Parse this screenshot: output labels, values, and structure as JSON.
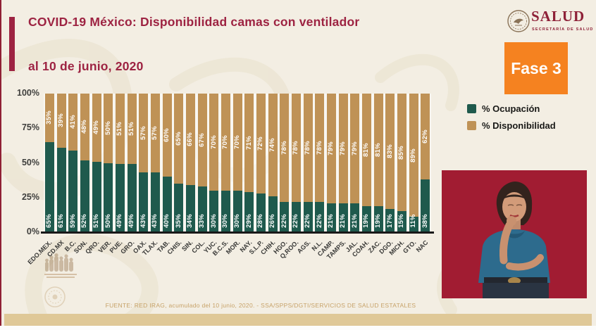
{
  "header": {
    "title_line1": "COVID-19 México: Disponibilidad camas con ventilador",
    "title_line2": "al 10 de junio, 2020",
    "phase_badge": "Fase 3",
    "logo_text": "SALUD",
    "logo_subtitle": "SECRETARÍA DE SALUD"
  },
  "legend": {
    "items": [
      {
        "label": "% Ocupación",
        "color": "#1f5a4d"
      },
      {
        "label": "% Disponibilidad",
        "color": "#bf9256"
      }
    ]
  },
  "chart_data": {
    "type": "bar",
    "stacked": true,
    "title": "COVID-19 México: Disponibilidad camas con ventilador al 10 de junio, 2020",
    "categories": [
      "EDO.MEX.",
      "CD.MX",
      "B.C.",
      "SON.",
      "QRO.",
      "VER.",
      "PUE.",
      "GRO.",
      "OAX.",
      "TLAX.",
      "TAB.",
      "CHIS.",
      "SIN.",
      "COL.",
      "YUC.",
      "B.C.S.",
      "MOR.",
      "NAY.",
      "S.L.P.",
      "CHIH.",
      "HGO.",
      "Q.ROO.",
      "AGS.",
      "N.L.",
      "CAMP.",
      "TAMPS.",
      "JAL.",
      "COAH.",
      "ZAC.",
      "DGO.",
      "MICH.",
      "GTO.",
      "NAC"
    ],
    "series": [
      {
        "name": "% Ocupación",
        "color": "#1f5a4d",
        "values": [
          65,
          61,
          59,
          52,
          51,
          50,
          49,
          49,
          43,
          43,
          40,
          35,
          34,
          33,
          30,
          30,
          30,
          29,
          28,
          26,
          22,
          22,
          22,
          22,
          21,
          21,
          21,
          19,
          19,
          17,
          15,
          11,
          38
        ]
      },
      {
        "name": "% Disponibilidad",
        "color": "#bf9256",
        "values": [
          35,
          39,
          41,
          48,
          49,
          50,
          51,
          51,
          57,
          57,
          60,
          65,
          66,
          67,
          70,
          70,
          70,
          71,
          72,
          74,
          78,
          78,
          78,
          78,
          79,
          79,
          79,
          81,
          81,
          83,
          85,
          89,
          62
        ]
      }
    ],
    "y_ticks": [
      "100%",
      "75%",
      "50%",
      "25%",
      "0%"
    ],
    "ylim": [
      0,
      100
    ],
    "grid": false,
    "legend_position": "right",
    "value_labels": "each segment labeled with its percent"
  },
  "footer": {
    "source": "FUENTE: RED IRAG, acumulado del 10  junio, 2020. -  SSA/SPPS/DGTI/SERVICIOS DE SALUD ESTATALES"
  },
  "colors": {
    "maroon": "#9d2342",
    "orange": "#f58220",
    "occupied_green": "#1f5a4d",
    "available_tan": "#bf9256",
    "gold_footer_bar": "#dfc897",
    "video_background": "#9c1b31",
    "slide_background": "#f3eee3"
  }
}
